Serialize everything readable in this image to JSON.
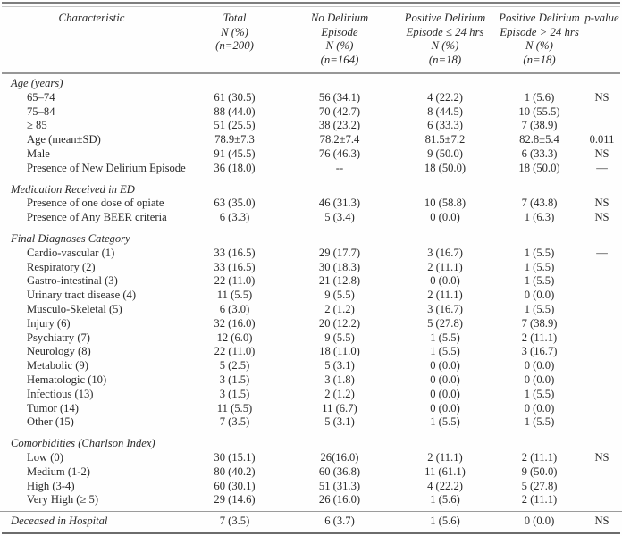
{
  "table": {
    "header": [
      {
        "name": "col-header-characteristic",
        "lines": [
          "Characteristic"
        ]
      },
      {
        "name": "col-header-total",
        "lines": [
          "Total",
          "N (%)",
          "(n=200)"
        ]
      },
      {
        "name": "col-header-no-delirium",
        "lines": [
          "No Delirium",
          "Episode",
          "N (%)",
          "(n=164)"
        ]
      },
      {
        "name": "col-header-positive-le-24hrs",
        "lines": [
          "Positive Delirium",
          "Episode ≤ 24 hrs",
          "N (%)",
          "(n=18)"
        ]
      },
      {
        "name": "col-header-positive-gt-24hrs",
        "lines": [
          "Positive Delirium",
          "Episode > 24 hrs",
          "N (%)",
          "(n=18)"
        ]
      },
      {
        "name": "col-header-p-value",
        "lines": [
          "p-value"
        ]
      }
    ],
    "rows": [
      {
        "type": "section",
        "label": "Age (years)"
      },
      {
        "type": "item",
        "label": "65–74",
        "values": [
          "61 (30.5)",
          "56 (34.1)",
          "4 (22.2)",
          "1 (5.6)",
          "NS"
        ]
      },
      {
        "type": "item",
        "label": "75–84",
        "values": [
          "88 (44.0)",
          "70 (42.7)",
          "8 (44.5)",
          "10 (55.5)",
          ""
        ]
      },
      {
        "type": "item",
        "label": "≥ 85",
        "values": [
          "51 (25.5)",
          "38 (23.2)",
          "6 (33.3)",
          "7 (38.9)",
          ""
        ]
      },
      {
        "type": "item",
        "label": "Age (mean±SD)",
        "values": [
          "78.9±7.3",
          "78.2±7.4",
          "81.5±7.2",
          "82.8±5.4",
          "0.011"
        ]
      },
      {
        "type": "item",
        "label": "Male",
        "values": [
          "91 (45.5)",
          "76 (46.3)",
          "9 (50.0)",
          "6 (33.3)",
          "NS"
        ]
      },
      {
        "type": "item",
        "label": "Presence of New Delirium Episode",
        "values": [
          "36 (18.0)",
          "--",
          "18 (50.0)",
          "18 (50.0)",
          "—"
        ]
      },
      {
        "type": "section",
        "label": "Medication Received in ED"
      },
      {
        "type": "item",
        "label": "Presence of one dose of opiate",
        "values": [
          "63 (35.0)",
          "46 (31.3)",
          "10 (58.8)",
          "7 (43.8)",
          "NS"
        ]
      },
      {
        "type": "item",
        "label": "Presence of Any BEER criteria",
        "values": [
          "6 (3.3)",
          "5 (3.4)",
          "0 (0.0)",
          "1 (6.3)",
          "NS"
        ]
      },
      {
        "type": "section",
        "label": "Final Diagnoses Category"
      },
      {
        "type": "item",
        "label": "Cardio-vascular (1)",
        "values": [
          "33 (16.5)",
          "29 (17.7)",
          "3 (16.7)",
          "1 (5.5)",
          "—"
        ]
      },
      {
        "type": "item",
        "label": "Respiratory (2)",
        "values": [
          "33 (16.5)",
          "30 (18.3)",
          "2 (11.1)",
          "1 (5.5)",
          ""
        ]
      },
      {
        "type": "item",
        "label": "Gastro-intestinal (3)",
        "values": [
          "22 (11.0)",
          "21 (12.8)",
          "0 (0.0)",
          "1 (5.5)",
          ""
        ]
      },
      {
        "type": "item",
        "label": "Urinary tract disease (4)",
        "values": [
          "11 (5.5)",
          "9 (5.5)",
          "2 (11.1)",
          "0 (0.0)",
          ""
        ]
      },
      {
        "type": "item",
        "label": "Musculo-Skeletal (5)",
        "values": [
          "6 (3.0)",
          "2 (1.2)",
          "3 (16.7)",
          "1 (5.5)",
          ""
        ]
      },
      {
        "type": "item",
        "label": "Injury (6)",
        "values": [
          "32 (16.0)",
          "20 (12.2)",
          "5 (27.8)",
          "7 (38.9)",
          ""
        ]
      },
      {
        "type": "item",
        "label": "Psychiatry (7)",
        "values": [
          "12 (6.0)",
          "9 (5.5)",
          "1 (5.5)",
          "2 (11.1)",
          ""
        ]
      },
      {
        "type": "item",
        "label": "Neurology (8)",
        "values": [
          "22 (11.0)",
          "18 (11.0)",
          "1 (5.5)",
          "3 (16.7)",
          ""
        ]
      },
      {
        "type": "item",
        "label": "Metabolic (9)",
        "values": [
          "5 (2.5)",
          "5 (3.1)",
          "0 (0.0)",
          "0 (0.0)",
          ""
        ]
      },
      {
        "type": "item",
        "label": "Hematologic (10)",
        "values": [
          "3 (1.5)",
          "3 (1.8)",
          "0 (0.0)",
          "0 (0.0)",
          ""
        ]
      },
      {
        "type": "item",
        "label": "Infectious (13)",
        "values": [
          "3 (1.5)",
          "2 (1.2)",
          "0 (0.0)",
          "1 (5.5)",
          ""
        ]
      },
      {
        "type": "item",
        "label": "Tumor (14)",
        "values": [
          "11 (5.5)",
          "11 (6.7)",
          "0 (0.0)",
          "0 (0.0)",
          ""
        ]
      },
      {
        "type": "item",
        "label": "Other (15)",
        "values": [
          "7 (3.5)",
          "5 (3.1)",
          "1 (5.5)",
          "1 (5.5)",
          ""
        ]
      },
      {
        "type": "section",
        "label": "Comorbidities (Charlson Index)"
      },
      {
        "type": "item",
        "label": "Low (0)",
        "values": [
          "30 (15.1)",
          "26(16.0)",
          "2 (11.1)",
          "2 (11.1)",
          "NS"
        ]
      },
      {
        "type": "item",
        "label": "Medium (1-2)",
        "values": [
          "80 (40.2)",
          "60 (36.8)",
          "11 (61.1)",
          "9 (50.0)",
          ""
        ]
      },
      {
        "type": "item",
        "label": "High (3-4)",
        "values": [
          "60 (30.1)",
          "51 (31.3)",
          "4 (22.2)",
          "5 (27.8)",
          ""
        ]
      },
      {
        "type": "item",
        "label": "Very High (≥ 5)",
        "values": [
          "29 (14.6)",
          "26 (16.0)",
          "1 (5.6)",
          "2 (11.1)",
          ""
        ]
      },
      {
        "type": "footer",
        "label": "Deceased in Hospital",
        "values": [
          "7 (3.5)",
          "6 (3.7)",
          "1 (5.6)",
          "0 (0.0)",
          "NS"
        ]
      }
    ]
  }
}
